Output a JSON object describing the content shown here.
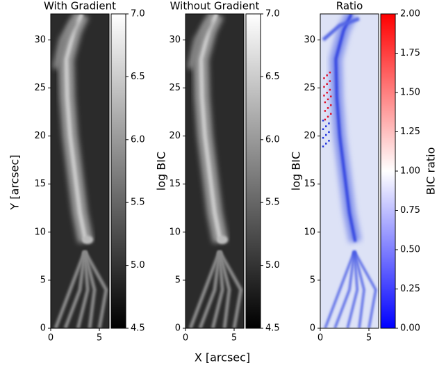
{
  "figure": {
    "xlabel": "X [arcsec]",
    "ylabel": "Y [arcsec]"
  },
  "chart_data": [
    {
      "type": "heatmap",
      "title": "With Gradient",
      "xlim": [
        0,
        6
      ],
      "xticks": [
        0,
        5
      ],
      "ylim": [
        0,
        32.7
      ],
      "yticks": [
        0,
        5,
        10,
        15,
        20,
        25,
        30
      ],
      "colorbar": {
        "label": "log BIC",
        "lim": [
          4.5,
          7.0
        ],
        "colors": [
          "#000000",
          "#ffffff"
        ],
        "ticks": [
          4.5,
          {
            "value": 5,
            "label": "5.0"
          },
          5.5,
          {
            "value": 6,
            "label": "6.0"
          },
          6.5,
          {
            "value": 7,
            "label": "7.0"
          }
        ]
      }
    },
    {
      "type": "heatmap",
      "title": "Without Gradient",
      "xlim": [
        0,
        6
      ],
      "xticks": [
        0,
        5
      ],
      "ylim": [
        0,
        32.7
      ],
      "yticks": [
        0,
        5,
        10,
        15,
        20,
        25,
        30
      ],
      "colorbar": {
        "label": "log BIC",
        "lim": [
          4.5,
          7.0
        ],
        "colors": [
          "#000000",
          "#ffffff"
        ],
        "ticks": [
          4.5,
          {
            "value": 5,
            "label": "5.0"
          },
          5.5,
          {
            "value": 6,
            "label": "6.0"
          },
          6.5,
          {
            "value": 7,
            "label": "7.0"
          }
        ]
      }
    },
    {
      "type": "heatmap",
      "title": "Ratio",
      "xlim": [
        0,
        6
      ],
      "xticks": [
        0,
        5
      ],
      "ylim": [
        0,
        32.7
      ],
      "yticks": [
        0,
        5,
        10,
        15,
        20,
        25,
        30
      ],
      "colorbar": {
        "label": "BIC ratio",
        "lim": [
          0,
          2
        ],
        "colors": [
          "#0000ff",
          "#ffffff",
          "#ff0000"
        ],
        "ticks": [
          {
            "value": 0,
            "label": "0.00"
          },
          0.25,
          {
            "value": 0.5,
            "label": "0.50"
          },
          0.75,
          {
            "value": 1,
            "label": "1.00"
          },
          1.25,
          {
            "value": 1.5,
            "label": "1.50"
          },
          1.75,
          {
            "value": 2,
            "label": "2.00"
          }
        ]
      }
    }
  ]
}
